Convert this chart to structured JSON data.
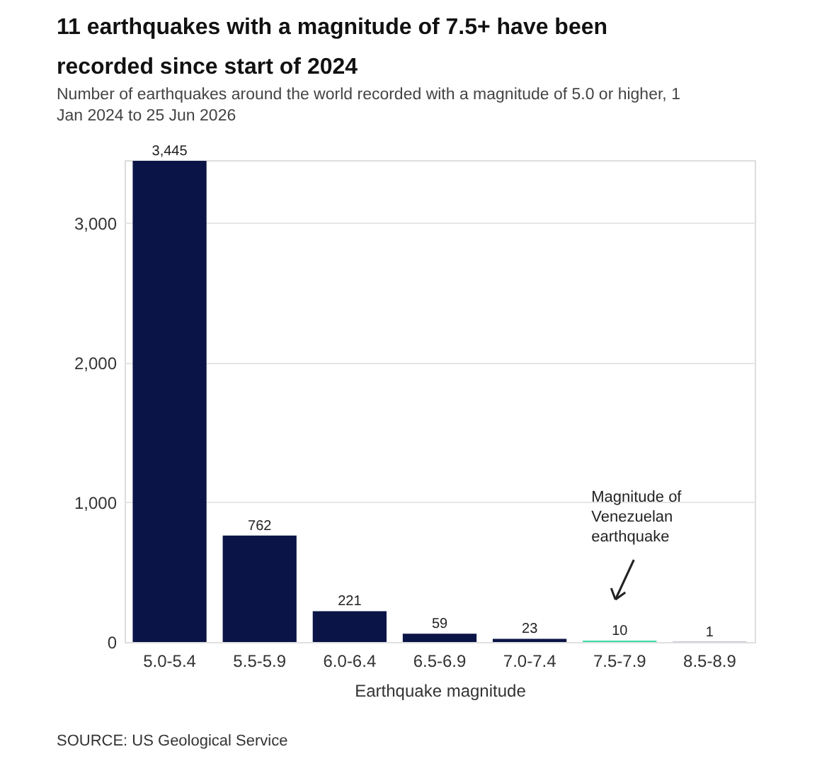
{
  "chart_data": {
    "type": "bar",
    "title": "11 earthquakes with a magnitude of 7.5+ have been recorded since start of 2024",
    "subtitle": "Number of earthquakes around the world recorded with a magnitude of 5.0 or higher, 1 Jan 2024 to 25 Jun 2026",
    "xlabel": "Earthquake magnitude",
    "categories": [
      "5.0-5.4",
      "5.5-5.9",
      "6.0-6.4",
      "6.5-6.9",
      "7.0-7.4",
      "7.5-7.9",
      "8.5-8.9"
    ],
    "values": [
      3445,
      762,
      221,
      59,
      23,
      10,
      1
    ],
    "colors": [
      "#0b1446",
      "#0b1446",
      "#0b1446",
      "#0b1446",
      "#0b1446",
      "#3ddba6",
      "#0b1446"
    ],
    "ylim": [
      0,
      3450
    ],
    "yticks": [
      {
        "value": 0,
        "label": "0"
      },
      {
        "value": 1000,
        "label": "1,000"
      },
      {
        "value": 2000,
        "label": "2,000"
      },
      {
        "value": 3000,
        "label": "3,000"
      }
    ],
    "grid": "y",
    "value_labels": [
      "3,445",
      "762",
      "221",
      "59",
      "23",
      "10",
      "1"
    ],
    "annotations": [
      "Magnitude of\nVenezuelan\nearthquake",
      "SOURCE: US Geological Service"
    ]
  }
}
